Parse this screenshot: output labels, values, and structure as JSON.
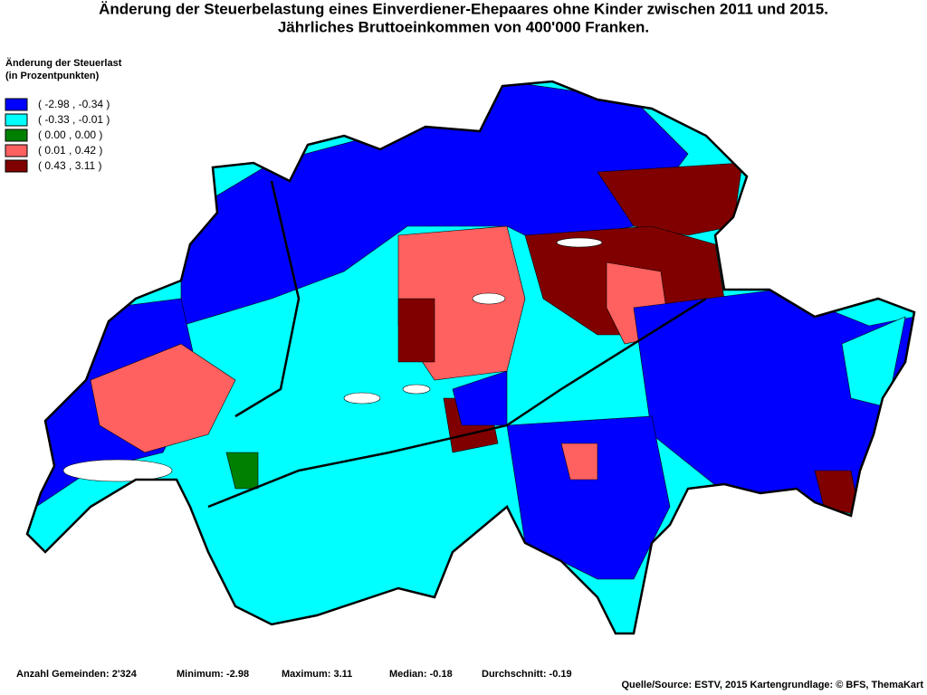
{
  "title": [
    "Änderung der Steuerbelastung eines Einverdiener-Ehepaares ohne Kinder zwischen 2011 und 2015.",
    "Jährliches Bruttoeinkommen von 400'000 Franken."
  ],
  "legend": {
    "title": [
      "Änderung der Steuerlast",
      "(in Prozentpunkten)"
    ],
    "items": [
      {
        "label": "( -2.98 , -0.34 )",
        "color": "#0000ff"
      },
      {
        "label": "( -0.33 , -0.01 )",
        "color": "#00ffff"
      },
      {
        "label": "( 0.00 , 0.00 )",
        "color": "#008000"
      },
      {
        "label": "( 0.01 , 0.42 )",
        "color": "#ff6060"
      },
      {
        "label": "( 0.43 , 3.11 )",
        "color": "#800000"
      }
    ]
  },
  "footer": {
    "stats": [
      "Anzahl Gemeinden: 2'324",
      "Minimum: -2.98",
      "Maximum: 3.11",
      "Median: -0.18",
      "Durchschnitt: -0.19"
    ],
    "source": "Quelle/Source: ESTV, 2015 Kartengrundlage: © BFS, ThemaKart"
  }
}
